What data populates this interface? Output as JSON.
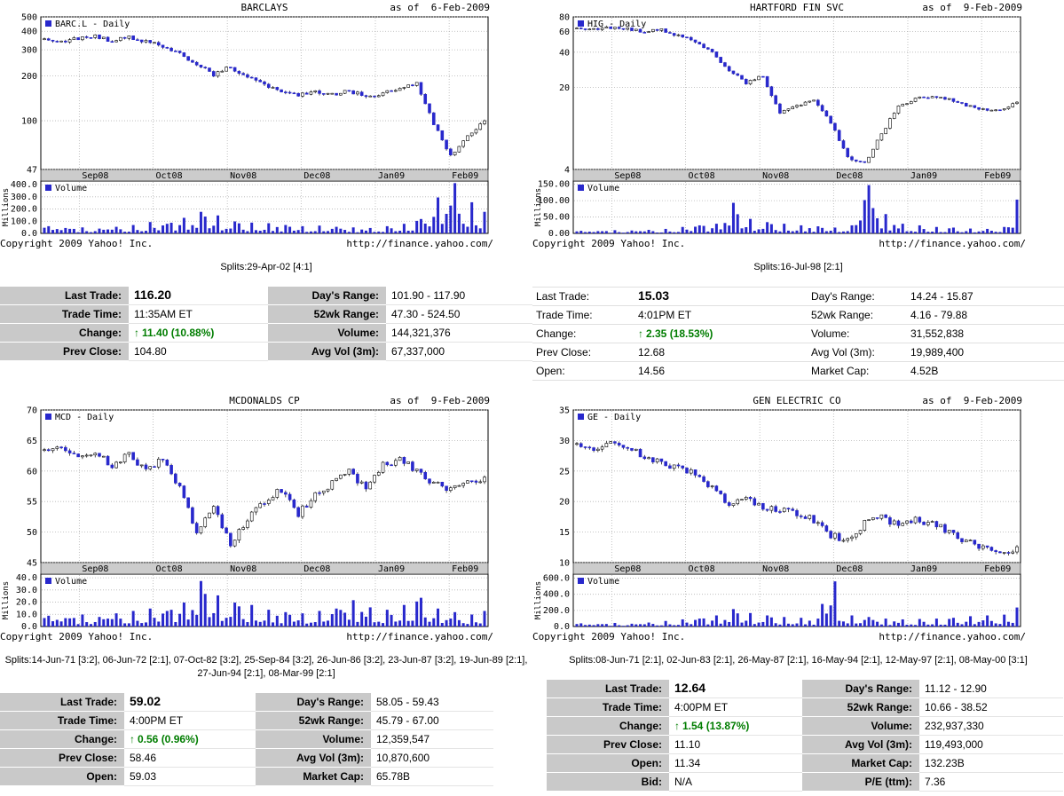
{
  "page": {
    "copyright": "Copyright 2009 Yahoo! Inc.",
    "url": "http://finance.yahoo.com/",
    "accent_blue": "#2828cc",
    "change_green": "#007d00",
    "band_gray": "#cccccc"
  },
  "chart_data": [
    {
      "type": "candlestick",
      "title": "BARCLAYS",
      "as_of_text": "as of  6-Feb-2009",
      "symbol_legend": "BARC.L - Daily",
      "volume_legend": "Volume",
      "y_unit": "Millions",
      "price_scale": "log",
      "price_range": [
        47,
        500
      ],
      "price_ticks": [
        {
          "label": "500",
          "value": 500
        },
        {
          "label": "400",
          "value": 400
        },
        {
          "label": "300",
          "value": 300
        },
        {
          "label": "200",
          "value": 200
        },
        {
          "label": "100",
          "value": 100
        },
        {
          "label": "47",
          "value": 47
        }
      ],
      "x_ticks": [
        {
          "label": "Sep08",
          "f": 0.086
        },
        {
          "label": "Oct08",
          "f": 0.251
        },
        {
          "label": "Nov08",
          "f": 0.417
        },
        {
          "label": "Dec08",
          "f": 0.582
        },
        {
          "label": "Jan09",
          "f": 0.748
        },
        {
          "label": "Feb09",
          "f": 0.913
        }
      ],
      "weekly_closes": [
        355,
        335,
        360,
        370,
        345,
        365,
        340,
        320,
        285,
        240,
        205,
        230,
        195,
        175,
        160,
        148,
        155,
        150,
        158,
        146,
        152,
        168,
        180,
        95,
        58,
        80,
        100
      ],
      "weekly_volumes": [
        60,
        45,
        50,
        40,
        55,
        70,
        95,
        80,
        130,
        180,
        150,
        100,
        90,
        85,
        70,
        60,
        65,
        55,
        50,
        45,
        60,
        80,
        120,
        300,
        420,
        260,
        180
      ],
      "volume_max": 430,
      "volume_ticks": [
        {
          "label": "400.0",
          "value": 400
        },
        {
          "label": "300.0",
          "value": 300
        },
        {
          "label": "200.0",
          "value": 200
        },
        {
          "label": "100.0",
          "value": 100
        },
        {
          "label": "0.0",
          "value": 0
        }
      ]
    },
    {
      "type": "candlestick",
      "title": "HARTFORD FIN SVC",
      "as_of_text": "as of  9-Feb-2009",
      "symbol_legend": "HIG - Daily",
      "volume_legend": "Volume",
      "y_unit": "Millions",
      "price_scale": "log",
      "price_range": [
        4,
        80
      ],
      "price_ticks": [
        {
          "label": "80",
          "value": 80
        },
        {
          "label": "60",
          "value": 60
        },
        {
          "label": "40",
          "value": 40
        },
        {
          "label": "20",
          "value": 20
        },
        {
          "label": "4",
          "value": 4
        }
      ],
      "x_ticks": [
        {
          "label": "Sep08",
          "f": 0.086
        },
        {
          "label": "Oct08",
          "f": 0.251
        },
        {
          "label": "Nov08",
          "f": 0.417
        },
        {
          "label": "Dec08",
          "f": 0.582
        },
        {
          "label": "Jan09",
          "f": 0.748
        },
        {
          "label": "Feb09",
          "f": 0.913
        }
      ],
      "weekly_closes": [
        64,
        62,
        65,
        63,
        60,
        62,
        55,
        50,
        40,
        28,
        22,
        25,
        12,
        14,
        16,
        10,
        5,
        4.5,
        8,
        14,
        16,
        17,
        16,
        14,
        13,
        13,
        15
      ],
      "weekly_volumes": [
        8,
        7,
        10,
        9,
        11,
        14,
        20,
        25,
        30,
        95,
        45,
        35,
        30,
        25,
        22,
        18,
        25,
        150,
        60,
        30,
        25,
        20,
        18,
        15,
        14,
        20,
        105
      ],
      "volume_max": 160,
      "volume_ticks": [
        {
          "label": "150.00",
          "value": 150
        },
        {
          "label": "100.00",
          "value": 100
        },
        {
          "label": "50.00",
          "value": 50
        },
        {
          "label": "0.00",
          "value": 0
        }
      ]
    },
    {
      "type": "candlestick",
      "title": "MCDONALDS CP",
      "as_of_text": "as of  9-Feb-2009",
      "symbol_legend": "MCD - Daily",
      "volume_legend": "Volume",
      "y_unit": "Millions",
      "price_scale": "linear",
      "price_range": [
        45,
        70
      ],
      "price_ticks": [
        {
          "label": "70",
          "value": 70
        },
        {
          "label": "65",
          "value": 65
        },
        {
          "label": "60",
          "value": 60
        },
        {
          "label": "55",
          "value": 55
        },
        {
          "label": "50",
          "value": 50
        },
        {
          "label": "45",
          "value": 45
        }
      ],
      "x_ticks": [
        {
          "label": "Sep08",
          "f": 0.086
        },
        {
          "label": "Oct08",
          "f": 0.251
        },
        {
          "label": "Nov08",
          "f": 0.417
        },
        {
          "label": "Dec08",
          "f": 0.582
        },
        {
          "label": "Jan09",
          "f": 0.748
        },
        {
          "label": "Feb09",
          "f": 0.913
        }
      ],
      "weekly_closes": [
        63,
        64,
        62,
        63,
        61,
        63,
        60,
        62,
        57,
        50,
        54,
        48,
        52,
        55,
        57,
        53,
        56,
        58,
        60,
        57,
        61,
        62,
        60,
        58,
        57,
        58,
        59
      ],
      "weekly_volumes": [
        9,
        7,
        10,
        8,
        11,
        13,
        15,
        13,
        20,
        38,
        26,
        20,
        18,
        14,
        12,
        11,
        13,
        15,
        22,
        16,
        14,
        18,
        24,
        15,
        12,
        10,
        13
      ],
      "volume_max": 43,
      "volume_ticks": [
        {
          "label": "40.0",
          "value": 40
        },
        {
          "label": "30.0",
          "value": 30
        },
        {
          "label": "20.0",
          "value": 20
        },
        {
          "label": "10.0",
          "value": 10
        },
        {
          "label": "0.0",
          "value": 0
        }
      ]
    },
    {
      "type": "candlestick",
      "title": "GEN ELECTRIC CO",
      "as_of_text": "as of  9-Feb-2009",
      "symbol_legend": "GE - Daily",
      "volume_legend": "Volume",
      "y_unit": "Millions",
      "price_scale": "linear",
      "price_range": [
        10,
        35
      ],
      "price_ticks": [
        {
          "label": "35",
          "value": 35
        },
        {
          "label": "30",
          "value": 30
        },
        {
          "label": "25",
          "value": 25
        },
        {
          "label": "20",
          "value": 20
        },
        {
          "label": "15",
          "value": 15
        },
        {
          "label": "10",
          "value": 10
        }
      ],
      "x_ticks": [
        {
          "label": "Sep08",
          "f": 0.086
        },
        {
          "label": "Oct08",
          "f": 0.251
        },
        {
          "label": "Nov08",
          "f": 0.417
        },
        {
          "label": "Dec08",
          "f": 0.582
        },
        {
          "label": "Jan09",
          "f": 0.748
        },
        {
          "label": "Feb09",
          "f": 0.913
        }
      ],
      "weekly_closes": [
        29,
        28.5,
        29.5,
        28.8,
        27.5,
        26.5,
        25.5,
        24.5,
        22,
        19.5,
        20.5,
        19,
        18.5,
        18,
        17,
        14.5,
        13.5,
        16.5,
        17.5,
        16,
        17,
        16.5,
        15,
        13.5,
        12.5,
        11.2,
        12.6
      ],
      "weekly_volumes": [
        40,
        30,
        45,
        35,
        50,
        70,
        90,
        100,
        140,
        220,
        170,
        140,
        120,
        110,
        100,
        570,
        140,
        120,
        100,
        90,
        95,
        100,
        110,
        130,
        140,
        150,
        240
      ],
      "volume_max": 650,
      "volume_ticks": [
        {
          "label": "600.0",
          "value": 600
        },
        {
          "label": "400.0",
          "value": 400
        },
        {
          "label": "200.0",
          "value": 200
        },
        {
          "label": "0.0",
          "value": 0
        }
      ]
    }
  ],
  "panels": [
    {
      "splits": "Splits:29-Apr-02 [4:1]",
      "quote_left": [
        {
          "label": "Last Trade:",
          "value": "116.20",
          "style": "last"
        },
        {
          "label": "Trade Time:",
          "value": "11:35AM ET"
        },
        {
          "label": "Change:",
          "value": "11.40 (10.88%)",
          "style": "change",
          "arrow": "up"
        },
        {
          "label": "Prev Close:",
          "value": "104.80"
        }
      ],
      "quote_right": [
        {
          "label": "Day's Range:",
          "value": "101.90 - 117.90"
        },
        {
          "label": "52wk Range:",
          "value": "47.30 - 524.50"
        },
        {
          "label": "Volume:",
          "value": "144,321,376"
        },
        {
          "label": "Avg Vol (3m):",
          "value": "67,337,000"
        }
      ]
    },
    {
      "splits": "Splits:16-Jul-98 [2:1]",
      "quote_left": [
        {
          "label": "Last Trade:",
          "value": "15.03",
          "style": "last"
        },
        {
          "label": "Trade Time:",
          "value": "4:01PM ET"
        },
        {
          "label": "Change:",
          "value": "2.35 (18.53%)",
          "style": "change",
          "arrow": "up"
        },
        {
          "label": "Prev Close:",
          "value": "12.68"
        },
        {
          "label": "Open:",
          "value": "14.56"
        }
      ],
      "quote_right": [
        {
          "label": "Day's Range:",
          "value": "14.24 - 15.87"
        },
        {
          "label": "52wk Range:",
          "value": "4.16 - 79.88"
        },
        {
          "label": "Volume:",
          "value": "31,552,838"
        },
        {
          "label": "Avg Vol (3m):",
          "value": "19,989,400"
        },
        {
          "label": "Market Cap:",
          "value": "4.52B"
        }
      ]
    },
    {
      "splits": "Splits:14-Jun-71 [3:2], 06-Jun-72 [2:1], 07-Oct-82 [3:2], 25-Sep-84 [3:2], 26-Jun-86 [3:2], 23-Jun-87 [3:2], 19-Jun-89 [2:1], 27-Jun-94 [2:1], 08-Mar-99 [2:1]",
      "quote_left": [
        {
          "label": "Last Trade:",
          "value": "59.02",
          "style": "last"
        },
        {
          "label": "Trade Time:",
          "value": "4:00PM ET"
        },
        {
          "label": "Change:",
          "value": "0.56 (0.96%)",
          "style": "change",
          "arrow": "up"
        },
        {
          "label": "Prev Close:",
          "value": "58.46"
        },
        {
          "label": "Open:",
          "value": "59.03"
        }
      ],
      "quote_right": [
        {
          "label": "Day's Range:",
          "value": "58.05 - 59.43"
        },
        {
          "label": "52wk Range:",
          "value": "45.79 - 67.00"
        },
        {
          "label": "Volume:",
          "value": "12,359,547"
        },
        {
          "label": "Avg Vol (3m):",
          "value": "10,870,600"
        },
        {
          "label": "Market Cap:",
          "value": "65.78B"
        }
      ]
    },
    {
      "splits": "Splits:08-Jun-71 [2:1], 02-Jun-83 [2:1], 26-May-87 [2:1], 16-May-94 [2:1], 12-May-97 [2:1], 08-May-00 [3:1]",
      "quote_left": [
        {
          "label": "Last Trade:",
          "value": "12.64",
          "style": "last"
        },
        {
          "label": "Trade Time:",
          "value": "4:00PM ET"
        },
        {
          "label": "Change:",
          "value": "1.54 (13.87%)",
          "style": "change",
          "arrow": "up"
        },
        {
          "label": "Prev Close:",
          "value": "11.10"
        },
        {
          "label": "Open:",
          "value": "11.34"
        },
        {
          "label": "Bid:",
          "value": "N/A"
        }
      ],
      "quote_right": [
        {
          "label": "Day's Range:",
          "value": "11.12 - 12.90"
        },
        {
          "label": "52wk Range:",
          "value": "10.66 - 38.52"
        },
        {
          "label": "Volume:",
          "value": "232,937,330"
        },
        {
          "label": "Avg Vol (3m):",
          "value": "119,493,000"
        },
        {
          "label": "Market Cap:",
          "value": "132.23B"
        },
        {
          "label": "P/E (ttm):",
          "value": "7.36"
        }
      ]
    }
  ]
}
